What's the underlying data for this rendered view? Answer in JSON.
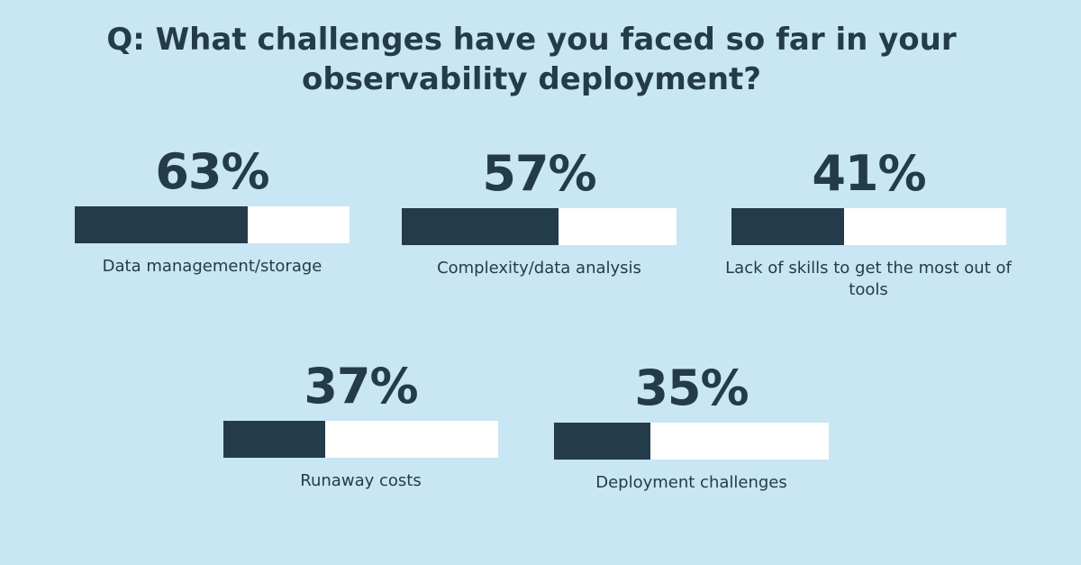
{
  "chart_data": {
    "type": "bar",
    "title": "Q: What challenges have you faced so far in your observability deployment?",
    "categories": [
      "Data management/storage",
      "Complexity/data analysis",
      "Lack of skills to get the most out of tools",
      "Runaway costs",
      "Deployment challenges"
    ],
    "values": [
      63,
      57,
      41,
      37,
      35
    ],
    "value_labels": [
      "63%",
      "57%",
      "41%",
      "37%",
      "35%"
    ],
    "ylim": [
      0,
      100
    ],
    "grid": false,
    "colors": {
      "background": "#c8e6f3",
      "fill": "#243b4c",
      "track": "#ffffff"
    }
  }
}
